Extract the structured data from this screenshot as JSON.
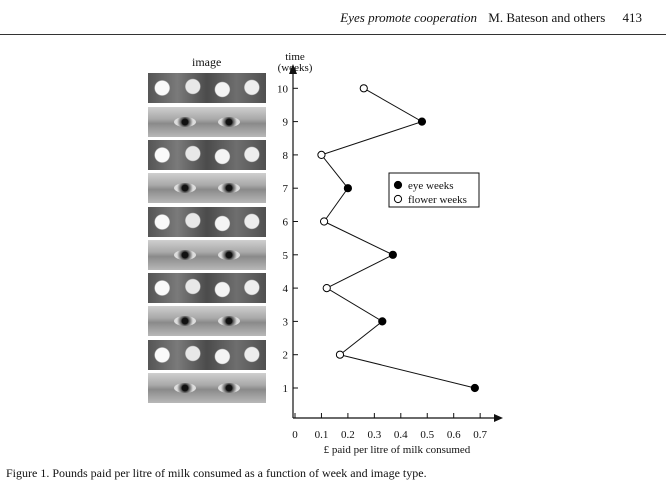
{
  "header": {
    "journal_title": "Eyes promote cooperation",
    "authors": "M. Bateson and others",
    "page_number": "413"
  },
  "figure": {
    "image_column_label": "image",
    "strips": [
      {
        "week": 10,
        "kind": "flower"
      },
      {
        "week": 9,
        "kind": "eye"
      },
      {
        "week": 8,
        "kind": "flower"
      },
      {
        "week": 7,
        "kind": "eye"
      },
      {
        "week": 6,
        "kind": "flower"
      },
      {
        "week": 5,
        "kind": "eye"
      },
      {
        "week": 4,
        "kind": "flower"
      },
      {
        "week": 3,
        "kind": "eye"
      },
      {
        "week": 2,
        "kind": "flower"
      },
      {
        "week": 1,
        "kind": "eye"
      }
    ],
    "caption": "Figure 1. Pounds paid per litre of milk consumed as a function of week and image type."
  },
  "chart_data": {
    "type": "line",
    "xlabel": "£ paid per litre of milk consumed",
    "ylabel": "time (weeks)",
    "ylabel_lines": [
      "time",
      "(weeks)"
    ],
    "xlim": [
      0,
      0.8
    ],
    "ylim": [
      0,
      11
    ],
    "x_ticks": [
      0,
      0.1,
      0.2,
      0.3,
      0.4,
      0.5,
      0.6,
      0.7
    ],
    "x_tick_labels": [
      "0",
      "0.1",
      "0.2",
      "0.3",
      "0.4",
      "0.5",
      "0.6",
      "0.7"
    ],
    "y_ticks": [
      1,
      2,
      3,
      4,
      5,
      6,
      7,
      8,
      9,
      10
    ],
    "y_tick_labels": [
      "1",
      "2",
      "3",
      "4",
      "5",
      "6",
      "7",
      "8",
      "9",
      "10"
    ],
    "legend_position": "right",
    "series": [
      {
        "name": "eye weeks",
        "marker": "filled-circle",
        "color": "#000000"
      },
      {
        "name": "flower weeks",
        "marker": "open-circle",
        "color": "#ffffff"
      }
    ],
    "points": [
      {
        "week": 1,
        "value": 0.68,
        "series": "eye weeks"
      },
      {
        "week": 2,
        "value": 0.17,
        "series": "flower weeks"
      },
      {
        "week": 3,
        "value": 0.33,
        "series": "eye weeks"
      },
      {
        "week": 4,
        "value": 0.12,
        "series": "flower weeks"
      },
      {
        "week": 5,
        "value": 0.37,
        "series": "eye weeks"
      },
      {
        "week": 6,
        "value": 0.11,
        "series": "flower weeks"
      },
      {
        "week": 7,
        "value": 0.2,
        "series": "eye weeks"
      },
      {
        "week": 8,
        "value": 0.1,
        "series": "flower weeks"
      },
      {
        "week": 9,
        "value": 0.48,
        "series": "eye weeks"
      },
      {
        "week": 10,
        "value": 0.26,
        "series": "flower weeks"
      }
    ]
  }
}
